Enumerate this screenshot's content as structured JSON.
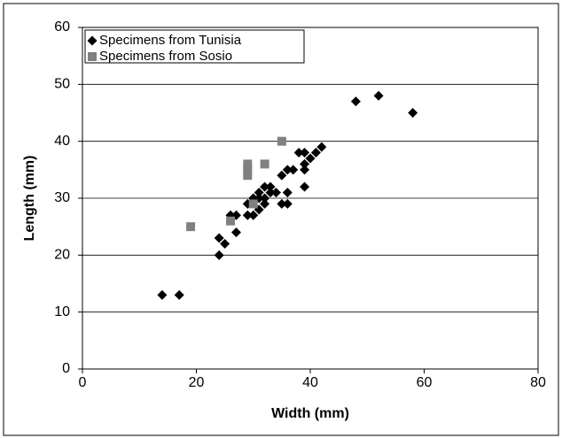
{
  "chart_data": {
    "type": "scatter",
    "x_label": "Width (mm)",
    "y_label": "Length (mm)",
    "xlim": [
      0,
      80
    ],
    "xticks": [
      0,
      20,
      40,
      60,
      80
    ],
    "ylim": [
      0,
      60
    ],
    "yticks": [
      0,
      10,
      20,
      30,
      40,
      50,
      60
    ],
    "grid": true,
    "legend": "upper-left",
    "series": [
      {
        "name": "Specimens from Tunisia",
        "color": "#000000",
        "marker": "diamond",
        "x": [
          14,
          17,
          24,
          24,
          25,
          26,
          27,
          27,
          29,
          29,
          30,
          30,
          31,
          31,
          31,
          32,
          32,
          32,
          33,
          33,
          34,
          35,
          35,
          36,
          36,
          36,
          37,
          38,
          39,
          39,
          39,
          39,
          40,
          41,
          42,
          48,
          52,
          58
        ],
        "values": [
          13,
          13,
          20,
          23,
          22,
          27,
          24,
          27,
          27,
          29,
          27,
          30,
          28,
          31,
          30,
          29,
          30,
          32,
          31,
          32,
          31,
          29,
          34,
          29,
          31,
          35,
          35,
          38,
          32,
          35,
          36,
          38,
          37,
          38,
          39,
          47,
          48,
          45
        ]
      },
      {
        "name": "Specimens from Sosio",
        "color": "#808080",
        "marker": "square",
        "x": [
          19,
          26,
          29,
          29,
          29,
          30,
          32,
          35
        ],
        "values": [
          25,
          26,
          34,
          35,
          36,
          29,
          36,
          40
        ]
      }
    ]
  }
}
